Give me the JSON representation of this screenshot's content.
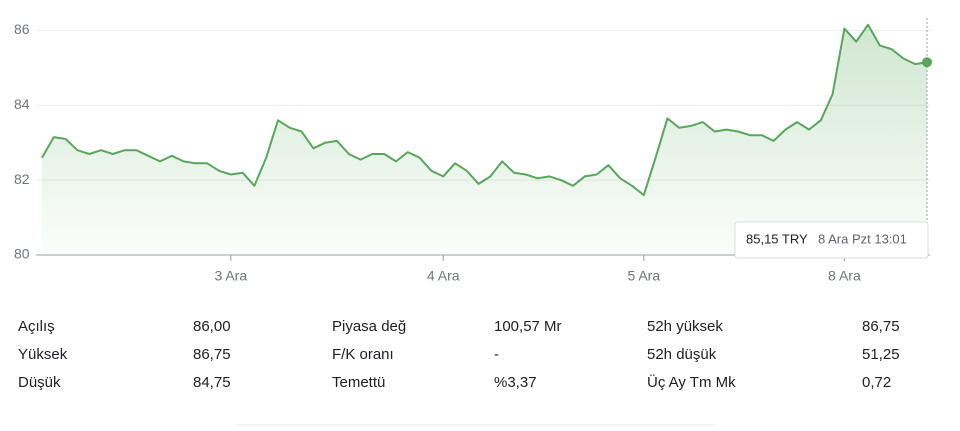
{
  "chart_data": {
    "type": "line",
    "color": "#57a85a",
    "categories": [
      null,
      null,
      null,
      null,
      null,
      null,
      null,
      null,
      null,
      null,
      null,
      null,
      null,
      null,
      null,
      null,
      "3 Ara",
      null,
      null,
      null,
      null,
      null,
      null,
      null,
      null,
      null,
      null,
      null,
      null,
      null,
      null,
      null,
      null,
      null,
      "4 Ara",
      null,
      null,
      null,
      null,
      null,
      null,
      null,
      null,
      null,
      null,
      null,
      null,
      null,
      null,
      null,
      null,
      "5 Ara",
      null,
      null,
      null,
      null,
      null,
      null,
      null,
      null,
      null,
      null,
      null,
      null,
      null,
      null,
      null,
      null,
      "8 Ara",
      null,
      null,
      null,
      null,
      null,
      null,
      null
    ],
    "values": [
      82.6,
      83.15,
      83.1,
      82.8,
      82.7,
      82.8,
      82.7,
      82.8,
      82.8,
      82.65,
      82.5,
      82.65,
      82.5,
      82.45,
      82.45,
      82.25,
      82.15,
      82.2,
      81.85,
      82.6,
      83.6,
      83.4,
      83.3,
      82.85,
      83.0,
      83.05,
      82.7,
      82.55,
      82.7,
      82.7,
      82.5,
      82.75,
      82.6,
      82.25,
      82.1,
      82.45,
      82.25,
      81.9,
      82.1,
      82.5,
      82.2,
      82.15,
      82.05,
      82.1,
      82.0,
      81.85,
      82.1,
      82.15,
      82.4,
      82.05,
      81.85,
      81.6,
      82.6,
      83.65,
      83.4,
      83.45,
      83.55,
      83.3,
      83.35,
      83.3,
      83.2,
      83.2,
      83.05,
      83.35,
      83.55,
      83.35,
      83.6,
      84.3,
      86.05,
      85.7,
      86.15,
      85.6,
      85.5,
      85.25,
      85.1,
      85.15
    ],
    "ylim": [
      80,
      86.6
    ],
    "yticks": [
      80,
      82,
      84,
      86
    ],
    "grid": true,
    "tooltip": {
      "price": "85,15 TRY",
      "time": "8 Ara Pzt 13:01"
    }
  },
  "stats": [
    [
      [
        "Açılış",
        "86,00"
      ],
      [
        "Yüksek",
        "86,75"
      ],
      [
        "Düşük",
        "84,75"
      ]
    ],
    [
      [
        "Piyasa değ",
        "100,57 Mr"
      ],
      [
        "F/K oranı",
        "-"
      ],
      [
        "Temettü",
        "%3,37"
      ]
    ],
    [
      [
        "52h yüksek",
        "86,75"
      ],
      [
        "52h düşük",
        "51,25"
      ],
      [
        "Üç Ay Tm Mk",
        "0,72"
      ]
    ]
  ]
}
